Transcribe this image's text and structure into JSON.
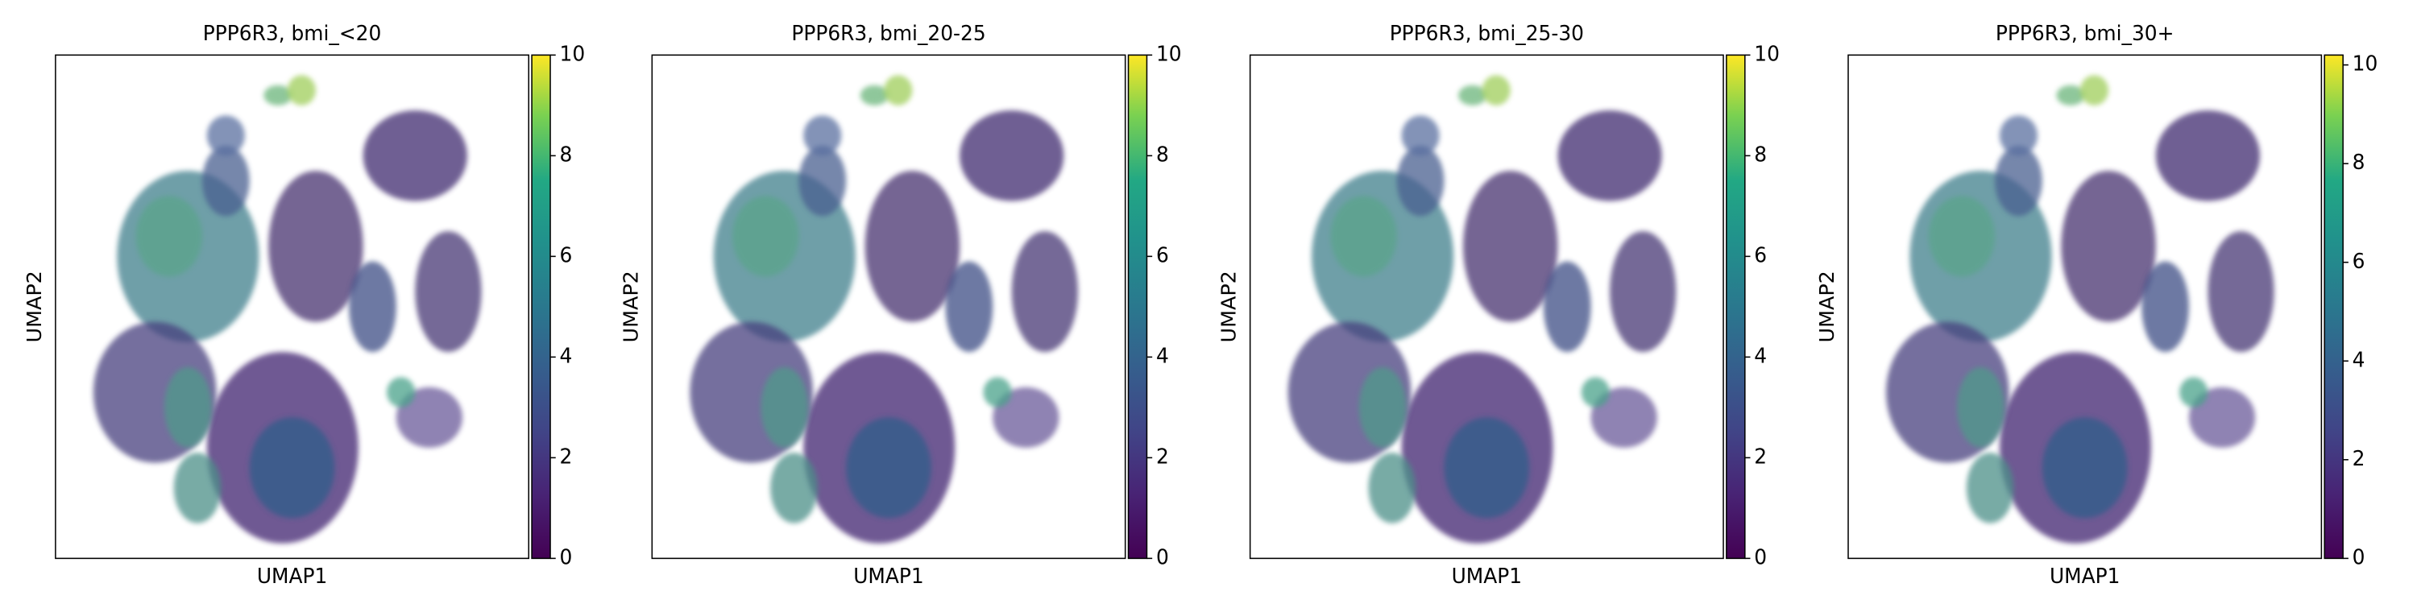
{
  "chart_data": [
    {
      "type": "scatter",
      "title": "PPP6R3, bmi_<20",
      "x_label": "UMAP1",
      "y_label": "UMAP2",
      "colormap": "viridis",
      "clim": [
        0,
        10
      ],
      "cticks": [
        0,
        2,
        4,
        6,
        8,
        10
      ]
    },
    {
      "type": "scatter",
      "title": "PPP6R3, bmi_20-25",
      "x_label": "UMAP1",
      "y_label": "UMAP2",
      "colormap": "viridis",
      "clim": [
        0,
        10
      ],
      "cticks": [
        0,
        2,
        4,
        6,
        8,
        10
      ]
    },
    {
      "type": "scatter",
      "title": "PPP6R3, bmi_25-30",
      "x_label": "UMAP1",
      "y_label": "UMAP2",
      "colormap": "viridis",
      "clim": [
        0,
        10
      ],
      "cticks": [
        0,
        2,
        4,
        6,
        8,
        10
      ]
    },
    {
      "type": "scatter",
      "title": "PPP6R3, bmi_30+",
      "x_label": "UMAP1",
      "y_label": "UMAP2",
      "colormap": "viridis",
      "clim": [
        0,
        10.2
      ],
      "cticks": [
        0,
        2,
        4,
        6,
        8,
        10
      ]
    }
  ]
}
